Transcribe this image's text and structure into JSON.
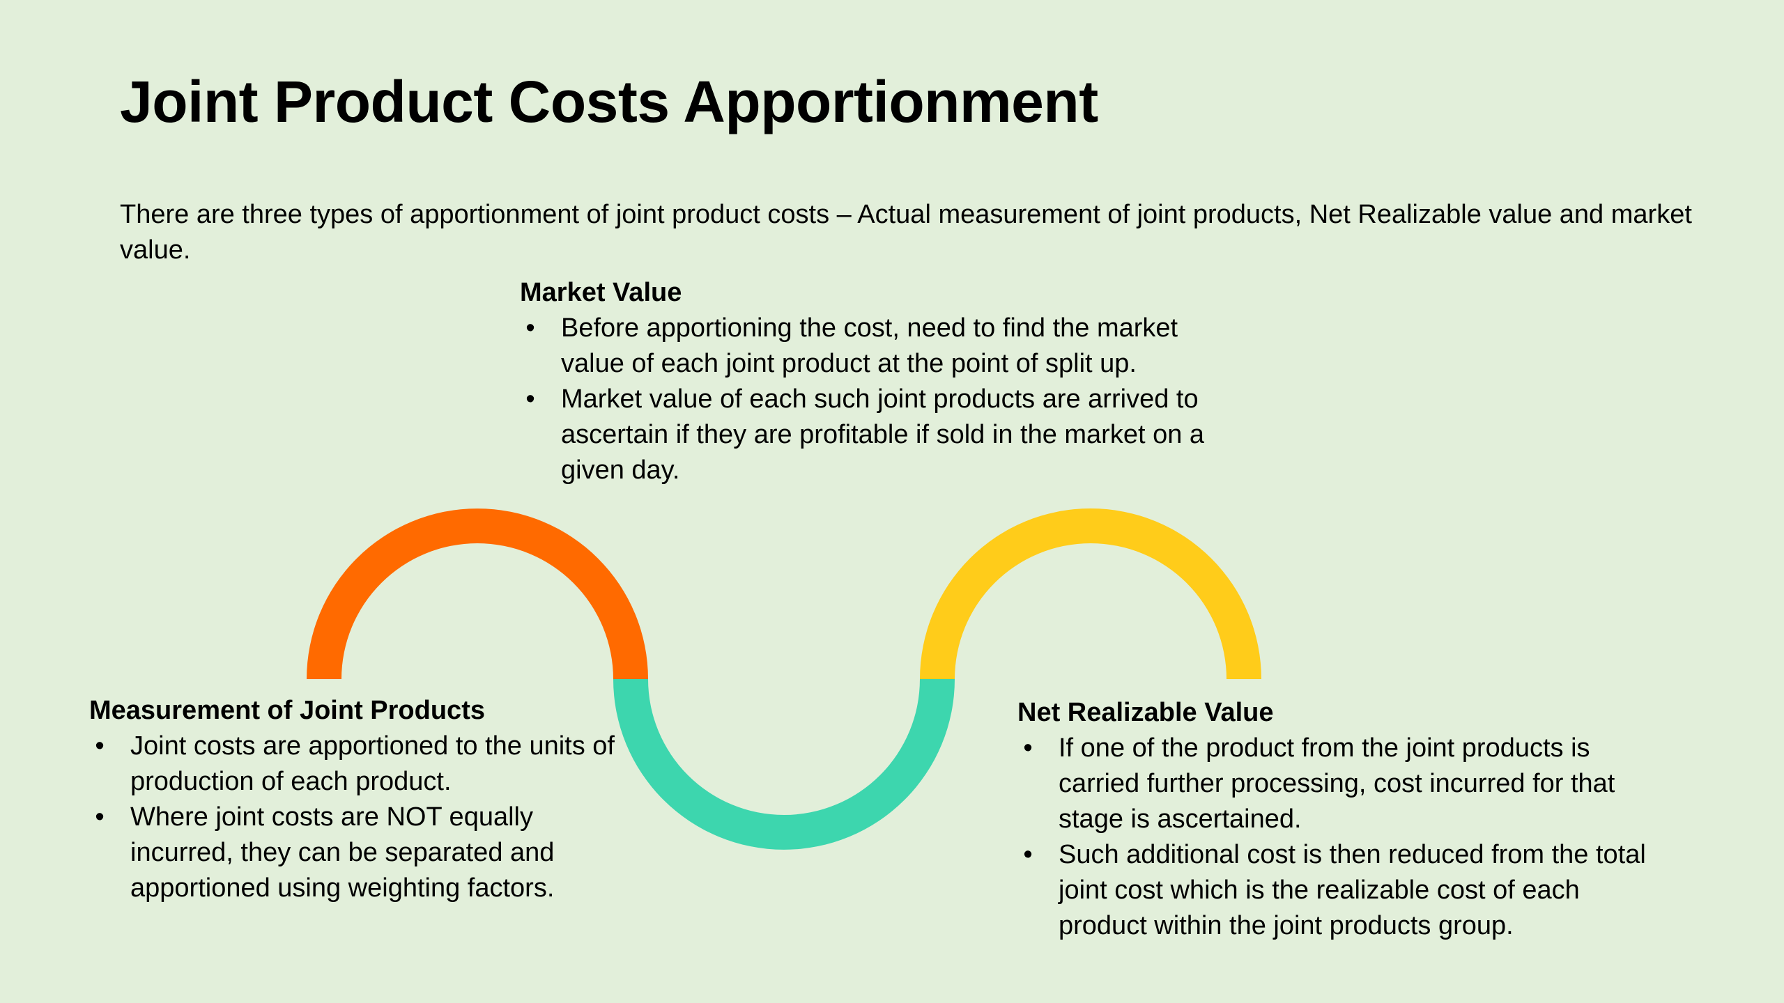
{
  "title": "Joint Product Costs Apportionment",
  "intro": "There are three types of apportionment of joint product costs – Actual measurement of joint products, Net Realizable value and market value.",
  "blocks": {
    "market": {
      "heading": "Market Value",
      "bullets": [
        "Before apportioning the cost, need to find the market value of each joint product at the point of split up.",
        "Market value of each such joint products are arrived to ascertain if they are profitable if sold in the market on a given day."
      ]
    },
    "measurement": {
      "heading": "Measurement  of Joint Products",
      "bullets": [
        "Joint costs are apportioned to the units of production of each product.",
        "Where joint costs are NOT equally incurred, they can be  separated and apportioned using weighting factors."
      ]
    },
    "nrv": {
      "heading": "Net Realizable  Value",
      "bullets": [
        "If one of the product from the joint products is carried further processing, cost incurred for that stage is ascertained.",
        "Such additional cost is then reduced from the total joint cost which is the realizable cost of each product within the joint  products group."
      ]
    }
  },
  "bullet_glyph": "•",
  "colors": {
    "background": "#e2efda",
    "arc_orange": "#ff6a00",
    "arc_teal": "#3dd6ae",
    "arc_yellow": "#ffcc1a"
  }
}
